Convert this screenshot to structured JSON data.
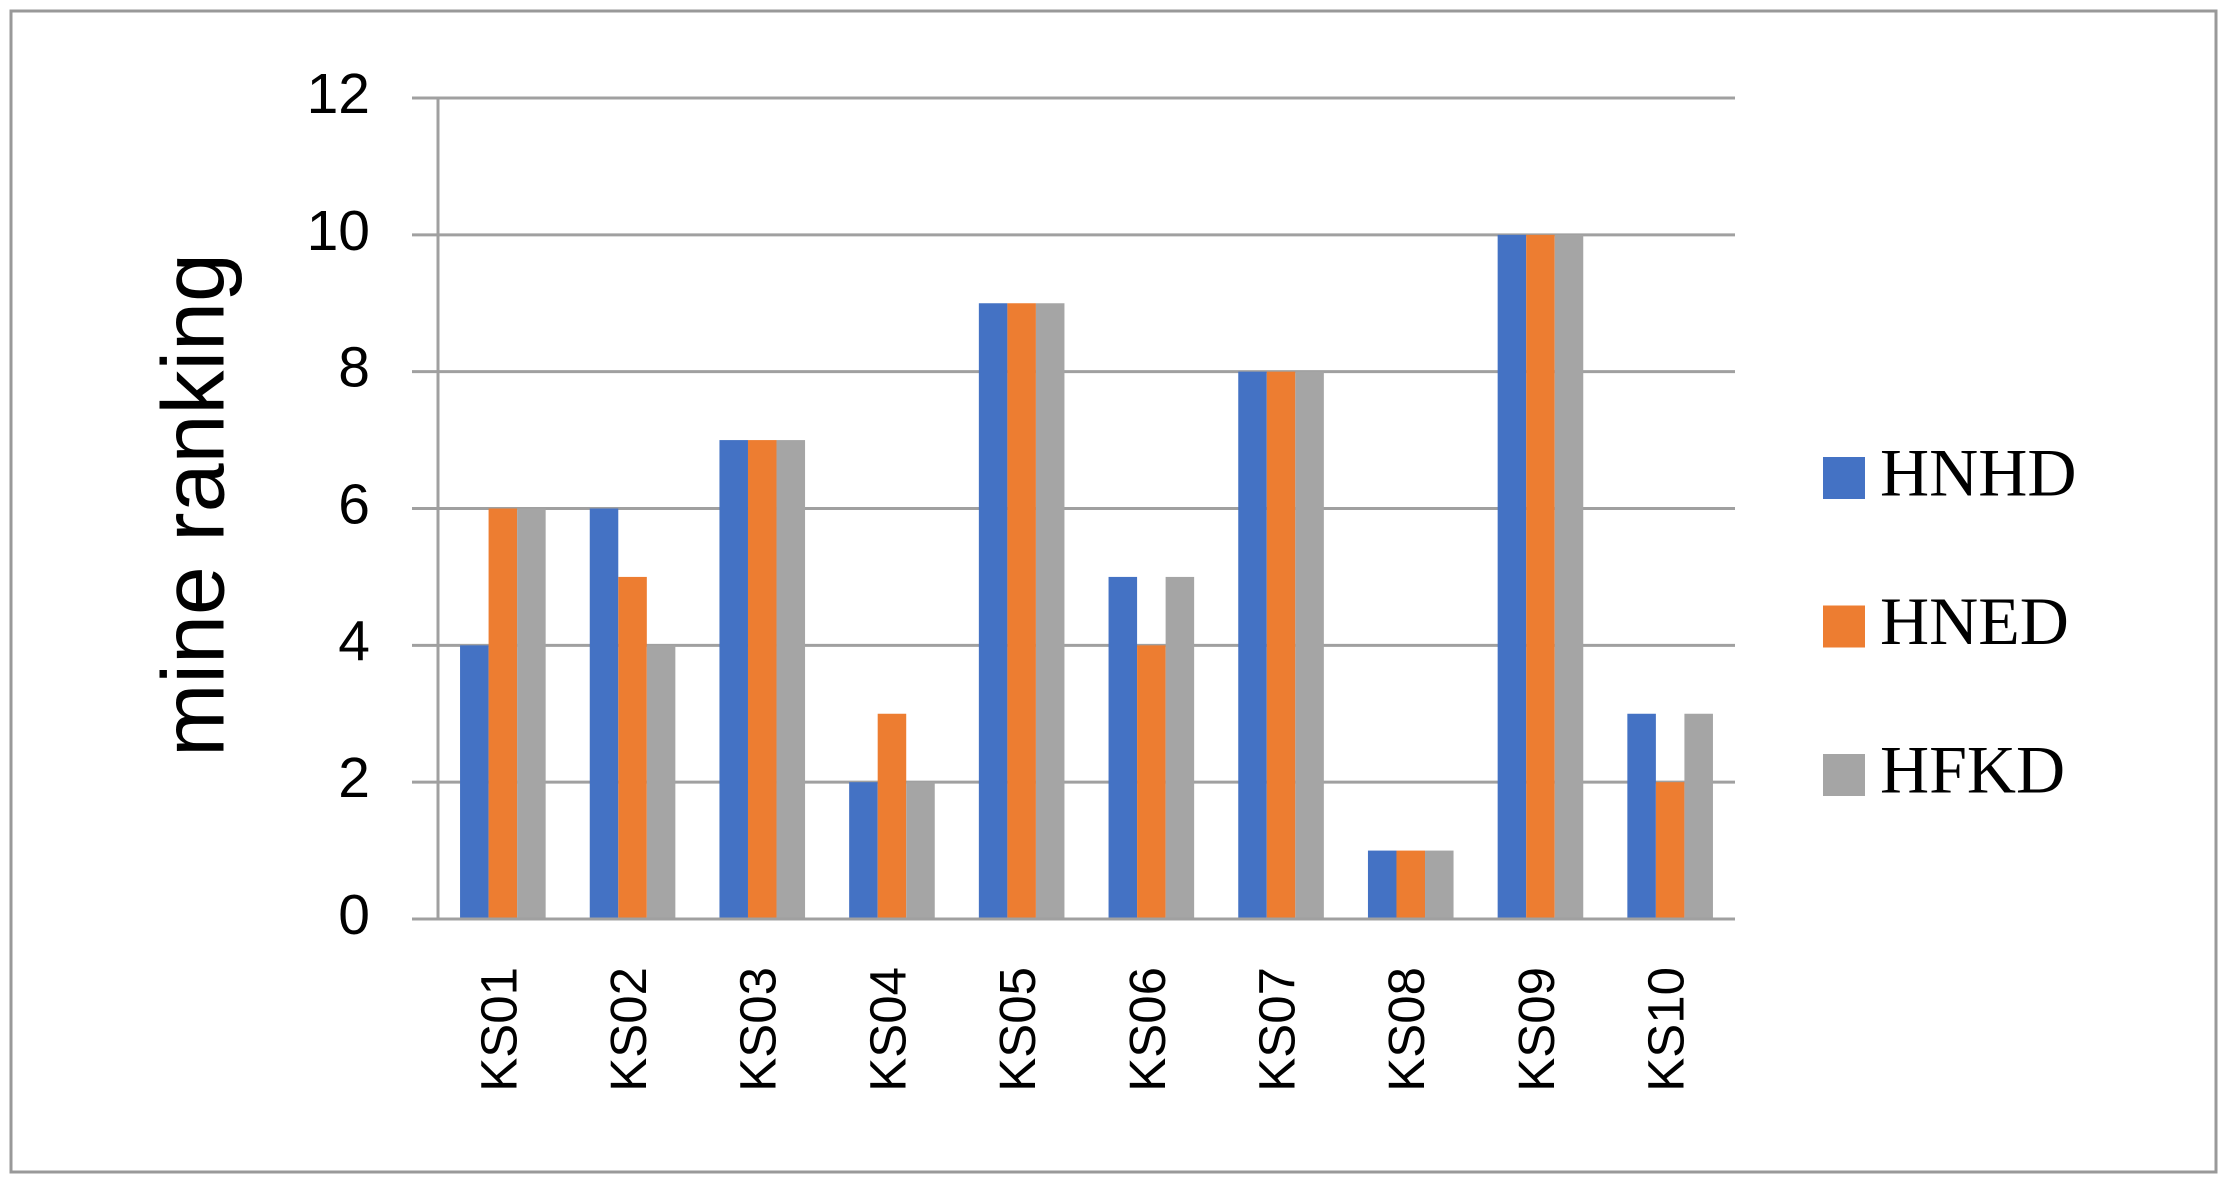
{
  "chart_data": {
    "type": "bar",
    "y_label": "mine ranking",
    "categories": [
      "KS01",
      "KS02",
      "KS03",
      "KS04",
      "KS05",
      "KS06",
      "KS07",
      "KS08",
      "KS09",
      "KS10"
    ],
    "series": [
      {
        "name": "HNHD",
        "color": "#4472c4",
        "values": [
          4,
          6,
          7,
          2,
          9,
          5,
          8,
          1,
          10,
          3
        ]
      },
      {
        "name": "HNED",
        "color": "#ed7d31",
        "values": [
          6,
          5,
          7,
          3,
          9,
          4,
          8,
          1,
          10,
          2
        ]
      },
      {
        "name": "HFKD",
        "color": "#a5a5a5",
        "values": [
          6,
          4,
          7,
          2,
          9,
          5,
          8,
          1,
          10,
          3
        ]
      }
    ],
    "ylim": [
      0,
      12
    ],
    "yticks": [
      0,
      2,
      4,
      6,
      8,
      10,
      12
    ],
    "grid": true,
    "legend": "right"
  }
}
